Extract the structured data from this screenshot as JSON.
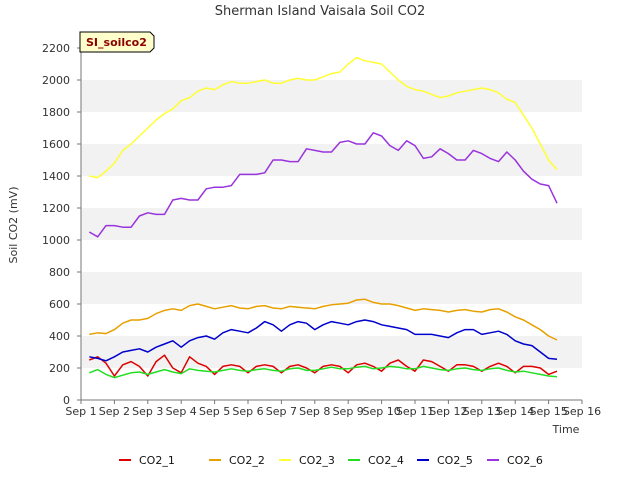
{
  "chart_data": {
    "type": "line",
    "title": "Sherman Island Vaisala Soil CO2",
    "badge": "SI_soilco2",
    "xlabel": "Time",
    "ylabel": "Soil CO2 (mV)",
    "x_ticks": [
      "Sep 1",
      "Sep 2",
      "Sep 3",
      "Sep 4",
      "Sep 5",
      "Sep 6",
      "Sep 7",
      "Sep 8",
      "Sep 9",
      "Sep 10",
      "Sep 11",
      "Sep 12",
      "Sep 13",
      "Sep 14",
      "Sep 15",
      "Sep 16"
    ],
    "xlim": [
      1,
      16
    ],
    "ylim": [
      0,
      2200
    ],
    "y_ticks": [
      0,
      200,
      400,
      600,
      800,
      1000,
      1200,
      1400,
      1600,
      1800,
      2000,
      2200
    ],
    "grid": "horizontal bands",
    "legend_position": "bottom",
    "x_unit": "day of September",
    "series": [
      {
        "name": "CO2_1",
        "color": "#dd0000",
        "x": [
          1.25,
          1.5,
          1.75,
          2.0,
          2.25,
          2.5,
          2.75,
          3.0,
          3.25,
          3.5,
          3.75,
          4.0,
          4.25,
          4.5,
          4.75,
          5.0,
          5.25,
          5.5,
          5.75,
          6.0,
          6.25,
          6.5,
          6.75,
          7.0,
          7.25,
          7.5,
          7.75,
          8.0,
          8.25,
          8.5,
          8.75,
          9.0,
          9.25,
          9.5,
          9.75,
          10.0,
          10.25,
          10.5,
          10.75,
          11.0,
          11.25,
          11.5,
          11.75,
          12.0,
          12.25,
          12.5,
          12.75,
          13.0,
          13.25,
          13.5,
          13.75,
          14.0,
          14.25,
          14.5,
          14.75,
          15.0,
          15.25
        ],
        "y": [
          250,
          270,
          230,
          150,
          220,
          240,
          210,
          150,
          240,
          280,
          200,
          170,
          270,
          230,
          210,
          160,
          210,
          220,
          210,
          170,
          210,
          220,
          210,
          170,
          210,
          220,
          200,
          170,
          210,
          220,
          210,
          170,
          220,
          230,
          210,
          180,
          230,
          250,
          210,
          180,
          250,
          240,
          210,
          180,
          220,
          220,
          210,
          180,
          210,
          230,
          210,
          170,
          210,
          210,
          200,
          160,
          180
        ]
      },
      {
        "name": "CO2_2",
        "color": "#e8a000",
        "x": [
          1.25,
          1.5,
          1.75,
          2.0,
          2.25,
          2.5,
          2.75,
          3.0,
          3.25,
          3.5,
          3.75,
          4.0,
          4.25,
          4.5,
          4.75,
          5.0,
          5.25,
          5.5,
          5.75,
          6.0,
          6.25,
          6.5,
          6.75,
          7.0,
          7.25,
          7.5,
          7.75,
          8.0,
          8.25,
          8.5,
          8.75,
          9.0,
          9.25,
          9.5,
          9.75,
          10.0,
          10.25,
          10.5,
          10.75,
          11.0,
          11.25,
          11.5,
          11.75,
          12.0,
          12.25,
          12.5,
          12.75,
          13.0,
          13.25,
          13.5,
          13.75,
          14.0,
          14.25,
          14.5,
          14.75,
          15.0,
          15.25
        ],
        "y": [
          410,
          420,
          415,
          440,
          480,
          500,
          500,
          510,
          540,
          560,
          570,
          560,
          590,
          600,
          585,
          570,
          580,
          590,
          575,
          570,
          585,
          590,
          575,
          570,
          585,
          580,
          575,
          570,
          585,
          595,
          600,
          605,
          625,
          630,
          610,
          600,
          600,
          590,
          575,
          560,
          570,
          565,
          560,
          550,
          560,
          565,
          555,
          550,
          565,
          570,
          550,
          520,
          500,
          470,
          440,
          400,
          375
        ]
      },
      {
        "name": "CO2_3",
        "color": "#ffff33",
        "x": [
          1.25,
          1.5,
          1.75,
          2.0,
          2.25,
          2.5,
          2.75,
          3.0,
          3.25,
          3.5,
          3.75,
          4.0,
          4.25,
          4.5,
          4.75,
          5.0,
          5.25,
          5.5,
          5.75,
          6.0,
          6.25,
          6.5,
          6.75,
          7.0,
          7.25,
          7.5,
          7.75,
          8.0,
          8.25,
          8.5,
          8.75,
          9.0,
          9.25,
          9.5,
          9.75,
          10.0,
          10.25,
          10.5,
          10.75,
          11.0,
          11.25,
          11.5,
          11.75,
          12.0,
          12.25,
          12.5,
          12.75,
          13.0,
          13.25,
          13.5,
          13.75,
          14.0,
          14.25,
          14.5,
          14.75,
          15.0,
          15.25
        ],
        "y": [
          1400,
          1390,
          1430,
          1480,
          1560,
          1600,
          1650,
          1700,
          1750,
          1790,
          1820,
          1870,
          1890,
          1930,
          1950,
          1940,
          1970,
          1990,
          1980,
          1980,
          1990,
          2000,
          1980,
          1980,
          2000,
          2010,
          2000,
          2000,
          2020,
          2040,
          2050,
          2100,
          2140,
          2120,
          2110,
          2100,
          2050,
          2000,
          1960,
          1940,
          1930,
          1910,
          1890,
          1900,
          1920,
          1930,
          1940,
          1950,
          1940,
          1920,
          1880,
          1860,
          1780,
          1700,
          1600,
          1500,
          1440
        ]
      },
      {
        "name": "CO2_4",
        "color": "#22dd22",
        "x": [
          1.25,
          1.5,
          1.75,
          2.0,
          2.25,
          2.5,
          2.75,
          3.0,
          3.25,
          3.5,
          3.75,
          4.0,
          4.25,
          4.5,
          4.75,
          5.0,
          5.25,
          5.5,
          5.75,
          6.0,
          6.25,
          6.5,
          6.75,
          7.0,
          7.25,
          7.5,
          7.75,
          8.0,
          8.25,
          8.5,
          8.75,
          9.0,
          9.25,
          9.5,
          9.75,
          10.0,
          10.25,
          10.5,
          10.75,
          11.0,
          11.25,
          11.5,
          11.75,
          12.0,
          12.25,
          12.5,
          12.75,
          13.0,
          13.25,
          13.5,
          13.75,
          14.0,
          14.25,
          14.5,
          14.75,
          15.0,
          15.25
        ],
        "y": [
          170,
          190,
          160,
          140,
          155,
          170,
          175,
          160,
          175,
          190,
          175,
          165,
          195,
          185,
          180,
          175,
          185,
          195,
          185,
          180,
          190,
          195,
          185,
          180,
          195,
          200,
          185,
          185,
          195,
          205,
          195,
          195,
          205,
          210,
          195,
          200,
          210,
          205,
          195,
          195,
          210,
          200,
          190,
          185,
          195,
          200,
          190,
          185,
          195,
          200,
          185,
          175,
          180,
          170,
          160,
          150,
          145
        ]
      },
      {
        "name": "CO2_5",
        "color": "#0000cc",
        "x": [
          1.25,
          1.5,
          1.75,
          2.0,
          2.25,
          2.5,
          2.75,
          3.0,
          3.25,
          3.5,
          3.75,
          4.0,
          4.25,
          4.5,
          4.75,
          5.0,
          5.25,
          5.5,
          5.75,
          6.0,
          6.25,
          6.5,
          6.75,
          7.0,
          7.25,
          7.5,
          7.75,
          8.0,
          8.25,
          8.5,
          8.75,
          9.0,
          9.25,
          9.5,
          9.75,
          10.0,
          10.25,
          10.5,
          10.75,
          11.0,
          11.25,
          11.5,
          11.75,
          12.0,
          12.25,
          12.5,
          12.75,
          13.0,
          13.25,
          13.5,
          13.75,
          14.0,
          14.25,
          14.5,
          14.75,
          15.0,
          15.25
        ],
        "y": [
          270,
          260,
          245,
          270,
          300,
          310,
          320,
          300,
          330,
          350,
          370,
          330,
          370,
          390,
          400,
          380,
          420,
          440,
          430,
          420,
          450,
          490,
          470,
          430,
          470,
          490,
          480,
          440,
          470,
          490,
          480,
          470,
          490,
          500,
          490,
          470,
          460,
          450,
          440,
          410,
          410,
          410,
          400,
          390,
          420,
          440,
          440,
          410,
          420,
          430,
          410,
          370,
          350,
          340,
          300,
          260,
          255
        ]
      },
      {
        "name": "CO2_6",
        "color": "#9933dd",
        "x": [
          1.25,
          1.5,
          1.75,
          2.0,
          2.25,
          2.5,
          2.75,
          3.0,
          3.25,
          3.5,
          3.75,
          4.0,
          4.25,
          4.5,
          4.75,
          5.0,
          5.25,
          5.5,
          5.75,
          6.0,
          6.25,
          6.5,
          6.75,
          7.0,
          7.25,
          7.5,
          7.75,
          8.0,
          8.25,
          8.5,
          8.75,
          9.0,
          9.25,
          9.5,
          9.75,
          10.0,
          10.25,
          10.5,
          10.75,
          11.0,
          11.25,
          11.5,
          11.75,
          12.0,
          12.25,
          12.5,
          12.75,
          13.0,
          13.25,
          13.5,
          13.75,
          14.0,
          14.25,
          14.5,
          14.75,
          15.0,
          15.25
        ],
        "y": [
          1050,
          1020,
          1090,
          1090,
          1080,
          1080,
          1150,
          1170,
          1160,
          1160,
          1250,
          1260,
          1250,
          1250,
          1320,
          1330,
          1330,
          1340,
          1410,
          1410,
          1410,
          1420,
          1500,
          1500,
          1490,
          1490,
          1570,
          1560,
          1550,
          1550,
          1610,
          1620,
          1600,
          1600,
          1670,
          1650,
          1590,
          1560,
          1620,
          1590,
          1510,
          1520,
          1570,
          1540,
          1500,
          1500,
          1560,
          1540,
          1510,
          1490,
          1550,
          1500,
          1430,
          1380,
          1350,
          1340,
          1230
        ]
      }
    ]
  }
}
